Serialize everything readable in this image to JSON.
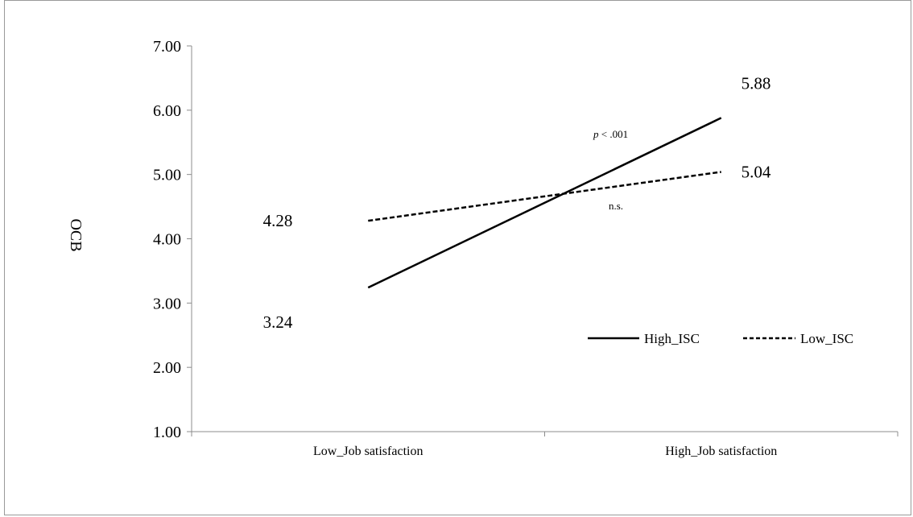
{
  "chart_data": {
    "type": "line",
    "title": "",
    "xlabel": "",
    "ylabel": "OCB",
    "categories": [
      "Low_Job satisfaction",
      "High_Job satisfaction"
    ],
    "ylim": [
      1.0,
      7.0
    ],
    "y_ticks": [
      "1.00",
      "2.00",
      "3.00",
      "4.00",
      "5.00",
      "6.00",
      "7.00"
    ],
    "grid": false,
    "legend_position": "right",
    "series": [
      {
        "name": "High_ISC",
        "values": [
          3.24,
          5.88
        ],
        "labels": [
          "3.24",
          "5.88"
        ],
        "style": "solid",
        "color": "#000000"
      },
      {
        "name": "Low_ISC",
        "values": [
          4.28,
          5.04
        ],
        "labels": [
          "4.28",
          "5.04"
        ],
        "style": "dashed",
        "color": "#000000"
      }
    ],
    "annotations": {
      "high_p_prefix": "p",
      "high_p_rest": " < .001",
      "low_sig": "n.s."
    }
  }
}
